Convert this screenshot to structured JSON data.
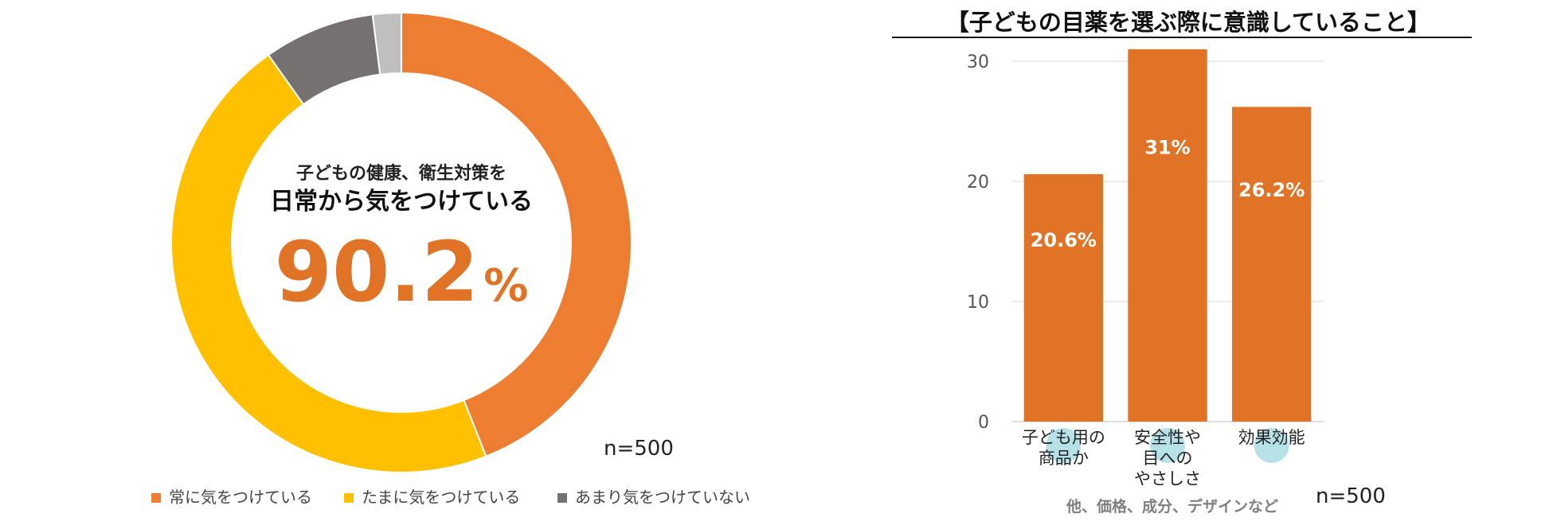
{
  "chart_data": [
    {
      "type": "pie",
      "categories": [
        "常に気をつけている",
        "たまに気をつけている",
        "あまり気をつけていない",
        ""
      ],
      "values": [
        44.0,
        46.2,
        7.8,
        2.0
      ],
      "colors": [
        "#ED7D31",
        "#FFC000",
        "#767171",
        "#BFBFBF"
      ],
      "center_line1": "子どもの健康、衛生対策を",
      "center_line2": "日常から気をつけている",
      "center_value": "90.2",
      "center_unit": "%",
      "sample": "n=500",
      "legend_position": "bottom"
    },
    {
      "type": "bar",
      "title": "【子どもの目薬を選ぶ際に意識していること】",
      "categories": [
        [
          "子ども用の",
          "商品か"
        ],
        [
          "安全性や",
          "目への",
          "やさしさ"
        ],
        [
          "効果効能"
        ]
      ],
      "values": [
        20.6,
        31,
        26.2
      ],
      "data_labels": [
        "20.6%",
        "31%",
        "26.2%"
      ],
      "color": "#E07325",
      "yticks": [
        0,
        10,
        20,
        30
      ],
      "ylim": [
        0,
        30
      ],
      "grid": true,
      "footnote": "他、価格、成分、デザインなど",
      "sample": "n=500"
    }
  ]
}
